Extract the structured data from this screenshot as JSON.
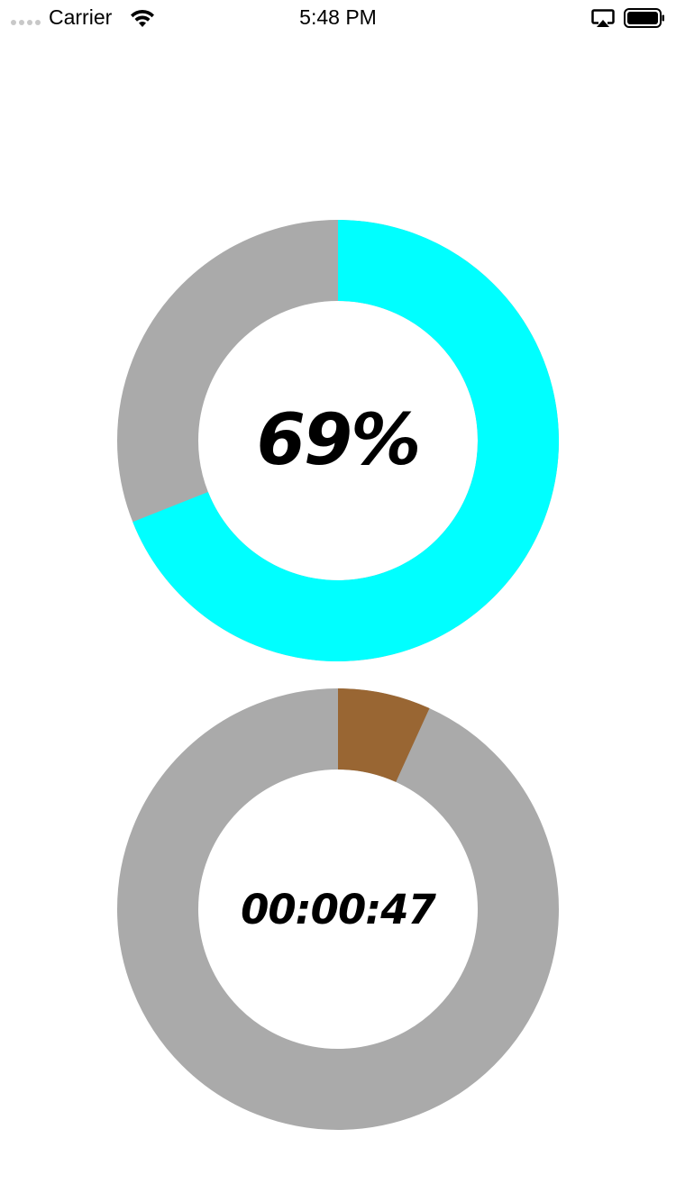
{
  "status_bar": {
    "carrier": "Carrier",
    "time": "5:48 PM",
    "signal_icon": "signal-dots-icon",
    "wifi_icon": "wifi-icon",
    "airplay_icon": "airplay-icon",
    "battery_icon": "battery-icon"
  },
  "progress_ring": {
    "label": "69%",
    "fraction": 0.69,
    "fill_color": "#00FFFF",
    "track_color": "#AAAAAA"
  },
  "timer_ring": {
    "label": "00:00:47",
    "fraction": 0.068,
    "fill_color": "#996633",
    "track_color": "#AAAAAA"
  }
}
